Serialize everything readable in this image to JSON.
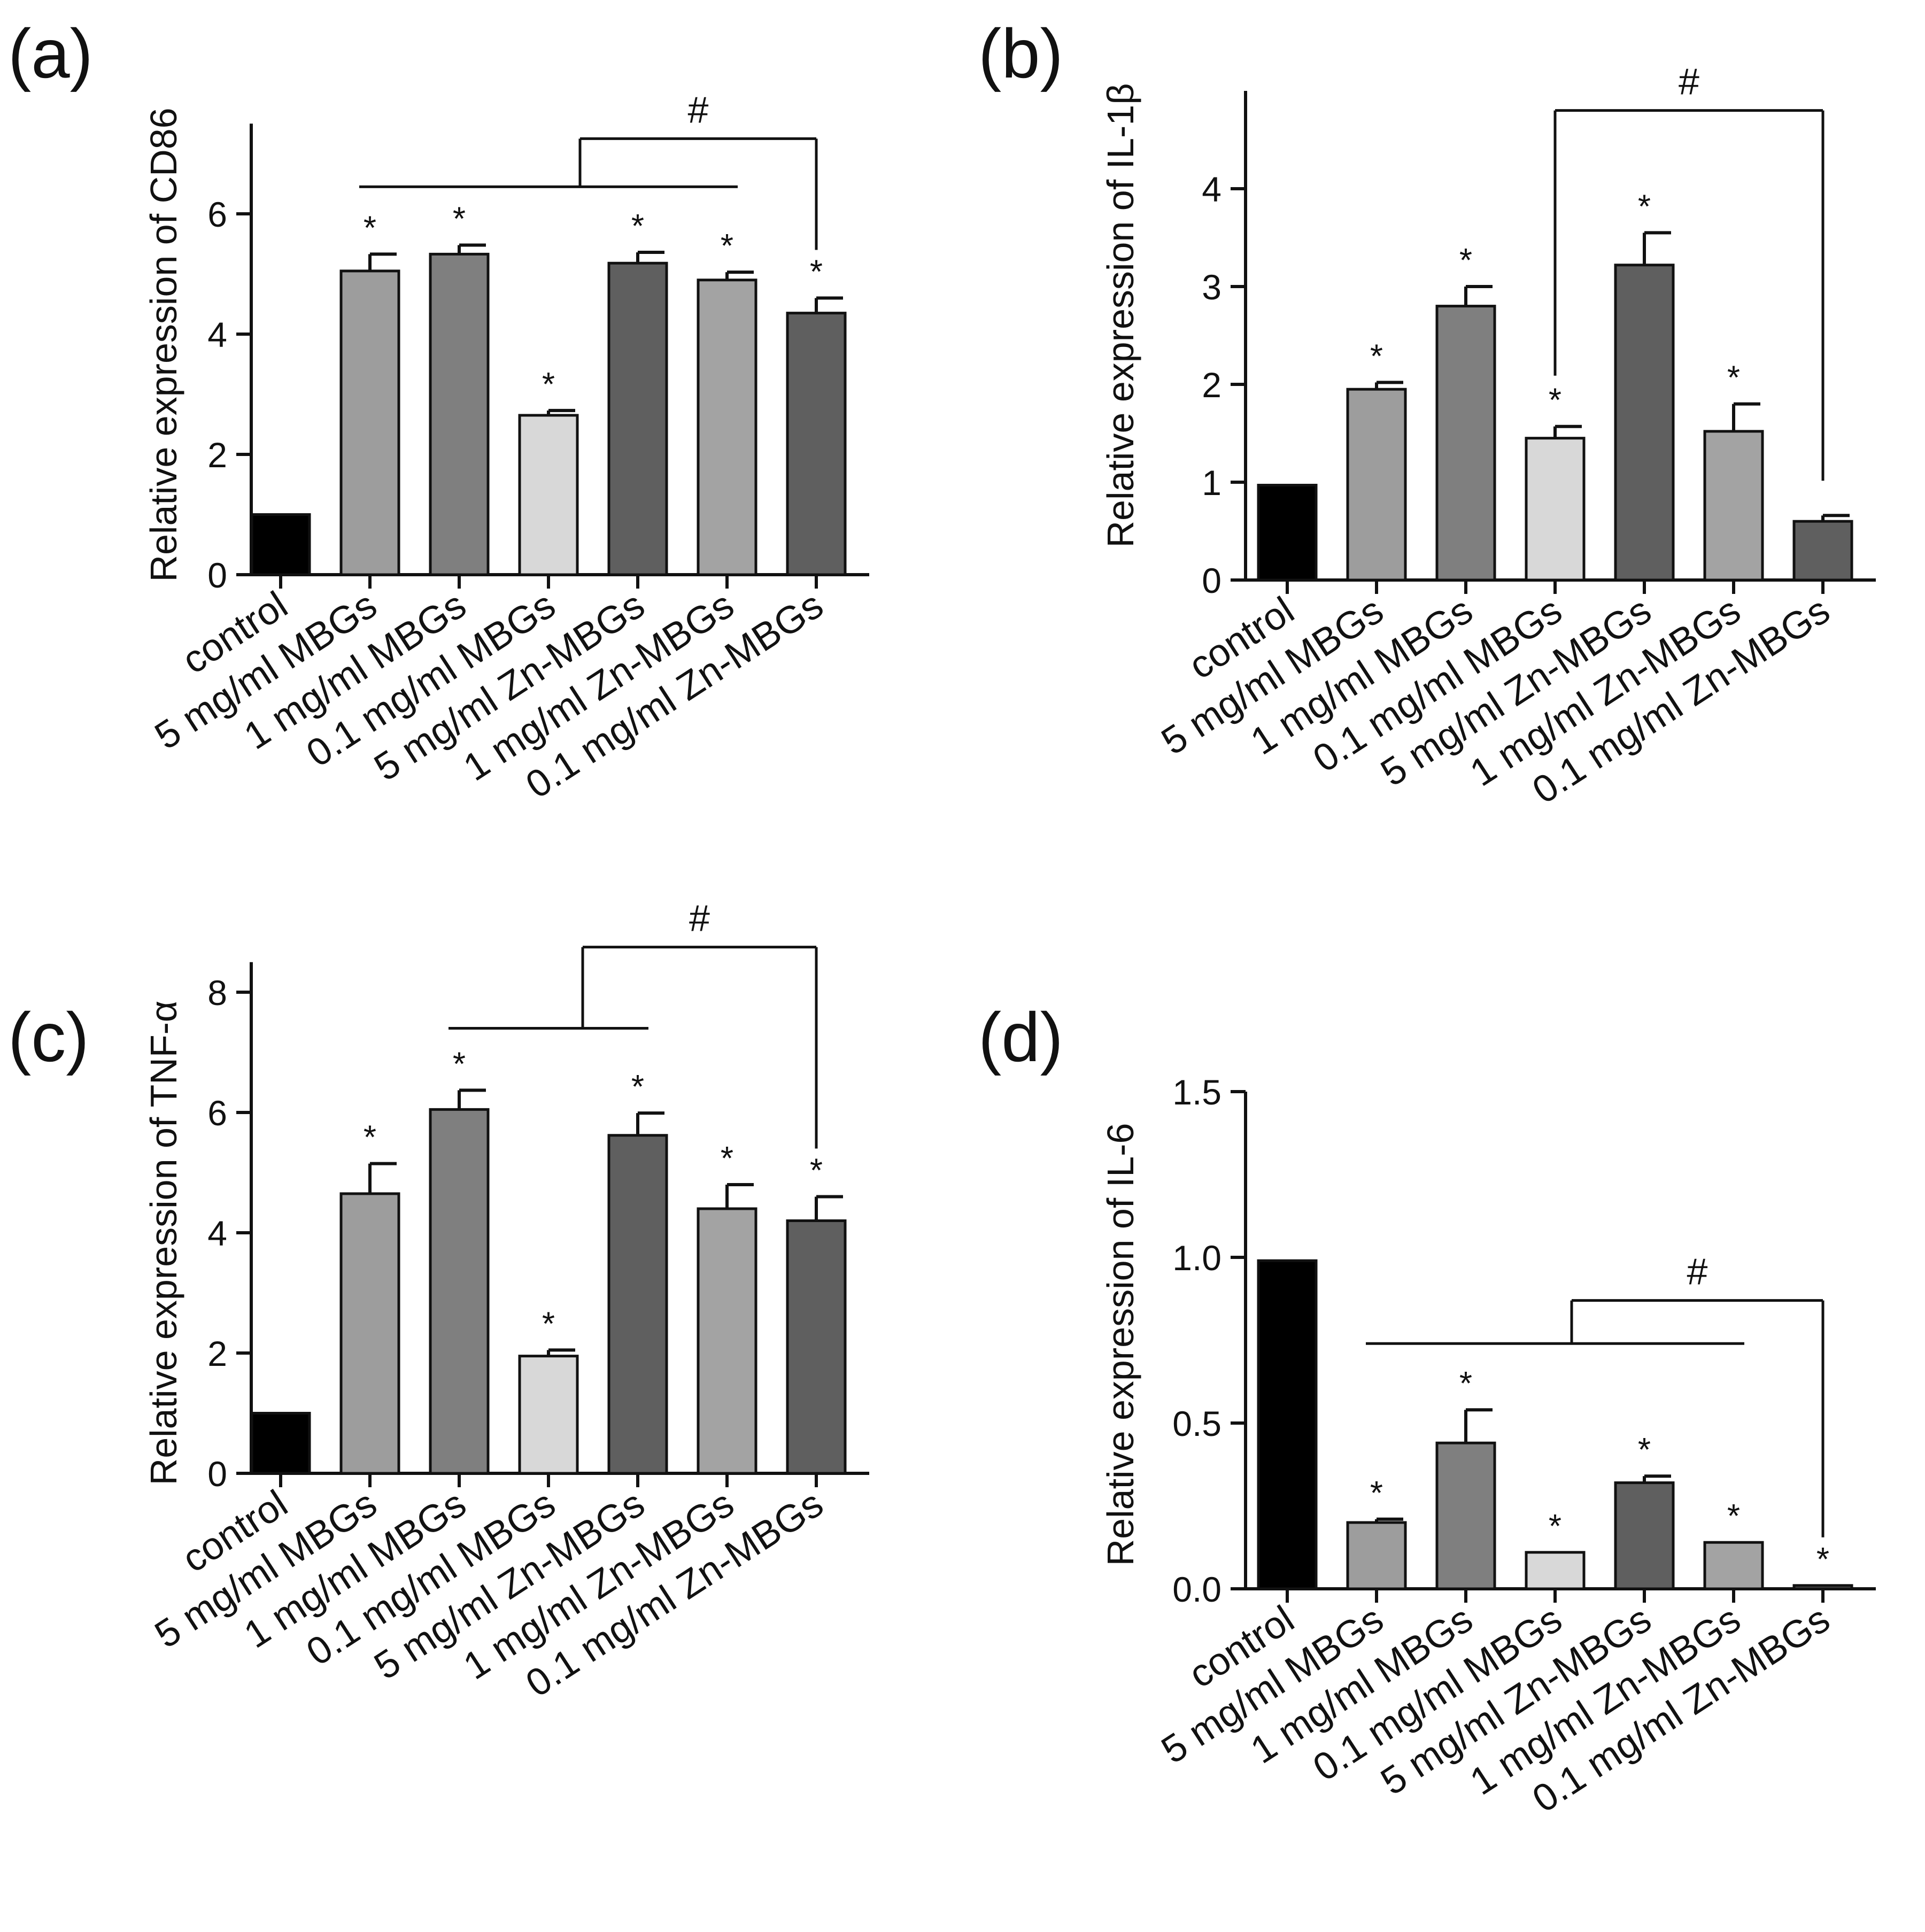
{
  "figure": {
    "panels": [
      "(a)",
      "(b)",
      "(c)",
      "(d)"
    ]
  },
  "chart_data": [
    {
      "type": "bar",
      "panel_label": "(a)",
      "ylabel": "Relative expression of  CD86",
      "xlabel": "",
      "categories": [
        "control",
        "5 mg/ml MBGs",
        "1 mg/ml MBGs",
        "0.1 mg/ml MBGs",
        "5 mg/ml Zn-MBGs",
        "1 mg/ml Zn-MBGs",
        "0.1 mg/ml Zn-MBGs"
      ],
      "values": [
        1.0,
        5.05,
        5.33,
        2.65,
        5.18,
        4.9,
        4.35
      ],
      "errors": [
        0.0,
        0.28,
        0.15,
        0.08,
        0.18,
        0.13,
        0.25
      ],
      "colors": [
        "#000000",
        "#9d9d9d",
        "#7f7f7f",
        "#d8d8d8",
        "#5f5f5f",
        "#a3a3a3",
        "#5f5f5f"
      ],
      "significance": [
        "",
        "*",
        "*",
        "*",
        "*",
        "*",
        "*"
      ],
      "ylim": [
        0,
        7.5
      ],
      "yticks": [
        0,
        2,
        4,
        6
      ],
      "ytick_labels": [
        "0",
        "2",
        "4",
        "6"
      ],
      "comparison": {
        "symbol": "#",
        "group_from": 1,
        "group_to": 5,
        "target": 6,
        "line_value": 6.45,
        "top_value": 7.25
      }
    },
    {
      "type": "bar",
      "panel_label": "(b)",
      "ylabel": "Relative expression of  IL-1β",
      "xlabel": "",
      "categories": [
        "control",
        "5 mg/ml MBGs",
        "1 mg/ml MBGs",
        "0.1 mg/ml MBGs",
        "5 mg/ml Zn-MBGs",
        "1 mg/ml Zn-MBGs",
        "0.1 mg/ml Zn-MBGs"
      ],
      "values": [
        0.97,
        1.95,
        2.8,
        1.45,
        3.22,
        1.52,
        0.6
      ],
      "errors": [
        0.0,
        0.07,
        0.2,
        0.12,
        0.33,
        0.28,
        0.06
      ],
      "colors": [
        "#000000",
        "#9d9d9d",
        "#7f7f7f",
        "#d8d8d8",
        "#5f5f5f",
        "#a3a3a3",
        "#5f5f5f"
      ],
      "significance": [
        "",
        "*",
        "*",
        "*",
        "*",
        "*",
        ""
      ],
      "ylim": [
        0,
        5
      ],
      "yticks": [
        0,
        1,
        2,
        3,
        4
      ],
      "ytick_labels": [
        "0",
        "1",
        "2",
        "3",
        "4"
      ],
      "comparison": {
        "symbol": "#",
        "group_from": 3,
        "group_to": 3,
        "target": 6,
        "line_value": 4.8,
        "top_value": 4.8
      }
    },
    {
      "type": "bar",
      "panel_label": "(c)",
      "ylabel": "Relative expression of  TNF-α",
      "xlabel": "",
      "categories": [
        "control",
        "5 mg/ml MBGs",
        "1 mg/ml MBGs",
        "0.1 mg/ml MBGs",
        "5 mg/ml Zn-MBGs",
        "1 mg/ml Zn-MBGs",
        "0.1 mg/ml Zn-MBGs"
      ],
      "values": [
        1.0,
        4.65,
        6.05,
        1.95,
        5.62,
        4.4,
        4.2
      ],
      "errors": [
        0.0,
        0.5,
        0.32,
        0.1,
        0.37,
        0.4,
        0.4
      ],
      "colors": [
        "#000000",
        "#9d9d9d",
        "#7f7f7f",
        "#d8d8d8",
        "#5f5f5f",
        "#a3a3a3",
        "#5f5f5f"
      ],
      "significance": [
        "",
        "*",
        "*",
        "*",
        "*",
        "*",
        "*"
      ],
      "ylim": [
        0,
        8.5
      ],
      "yticks": [
        0,
        2,
        4,
        6,
        8
      ],
      "ytick_labels": [
        "0",
        "2",
        "4",
        "6",
        "8"
      ],
      "comparison": {
        "symbol": "#",
        "group_from": 2,
        "group_to": 4,
        "target": 6,
        "line_value": 7.4,
        "top_value": 8.75
      }
    },
    {
      "type": "bar",
      "panel_label": "(d)",
      "ylabel": "Relative expression of   IL-6",
      "xlabel": "",
      "categories": [
        "control",
        "5 mg/ml MBGs",
        "1 mg/ml MBGs",
        "0.1 mg/ml MBGs",
        "5 mg/ml Zn-MBGs",
        "1 mg/ml Zn-MBGs",
        "0.1 mg/ml Zn-MBGs"
      ],
      "values": [
        0.99,
        0.2,
        0.44,
        0.11,
        0.32,
        0.14,
        0.01
      ],
      "errors": [
        0.0,
        0.01,
        0.1,
        0.0,
        0.02,
        0.0,
        0.0
      ],
      "colors": [
        "#000000",
        "#9d9d9d",
        "#7f7f7f",
        "#d8d8d8",
        "#5f5f5f",
        "#a3a3a3",
        "#5f5f5f"
      ],
      "significance": [
        "",
        "*",
        "*",
        "*",
        "*",
        "*",
        "*"
      ],
      "ylim": [
        0,
        1.5
      ],
      "yticks": [
        0.0,
        0.5,
        1.0,
        1.5
      ],
      "ytick_labels": [
        "0.0",
        "0.5",
        "1.0",
        "1.5"
      ],
      "comparison": {
        "symbol": "#",
        "group_from": 1,
        "group_to": 5,
        "target": 6,
        "line_value": 0.74,
        "top_value": 0.87
      }
    }
  ]
}
